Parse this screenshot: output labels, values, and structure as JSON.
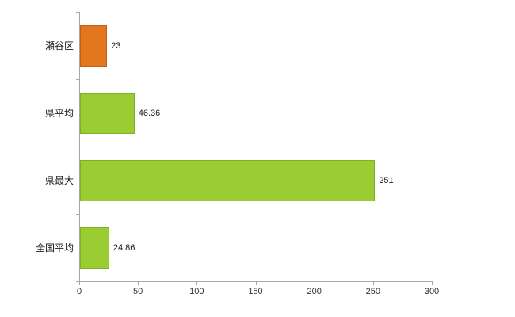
{
  "chart_data": {
    "type": "bar",
    "orientation": "horizontal",
    "title": "",
    "xlabel": "",
    "ylabel": "",
    "categories": [
      "瀬谷区",
      "県平均",
      "県最大",
      "全国平均"
    ],
    "values": [
      23,
      46.36,
      251,
      24.86
    ],
    "value_labels": [
      "23",
      "46.36",
      "251",
      "24.86"
    ],
    "bar_fill_colors": [
      "#e2771d",
      "#9bcc32",
      "#9bcc32",
      "#9bcc32"
    ],
    "bar_border_colors": [
      "#bf6114",
      "#82ad26",
      "#82ad26",
      "#82ad26"
    ],
    "xlim": [
      0,
      300
    ],
    "x_ticks": [
      0,
      50,
      100,
      150,
      200,
      250,
      300
    ],
    "grid": false,
    "legend": "none",
    "axis_color": "#a6a6a6"
  }
}
